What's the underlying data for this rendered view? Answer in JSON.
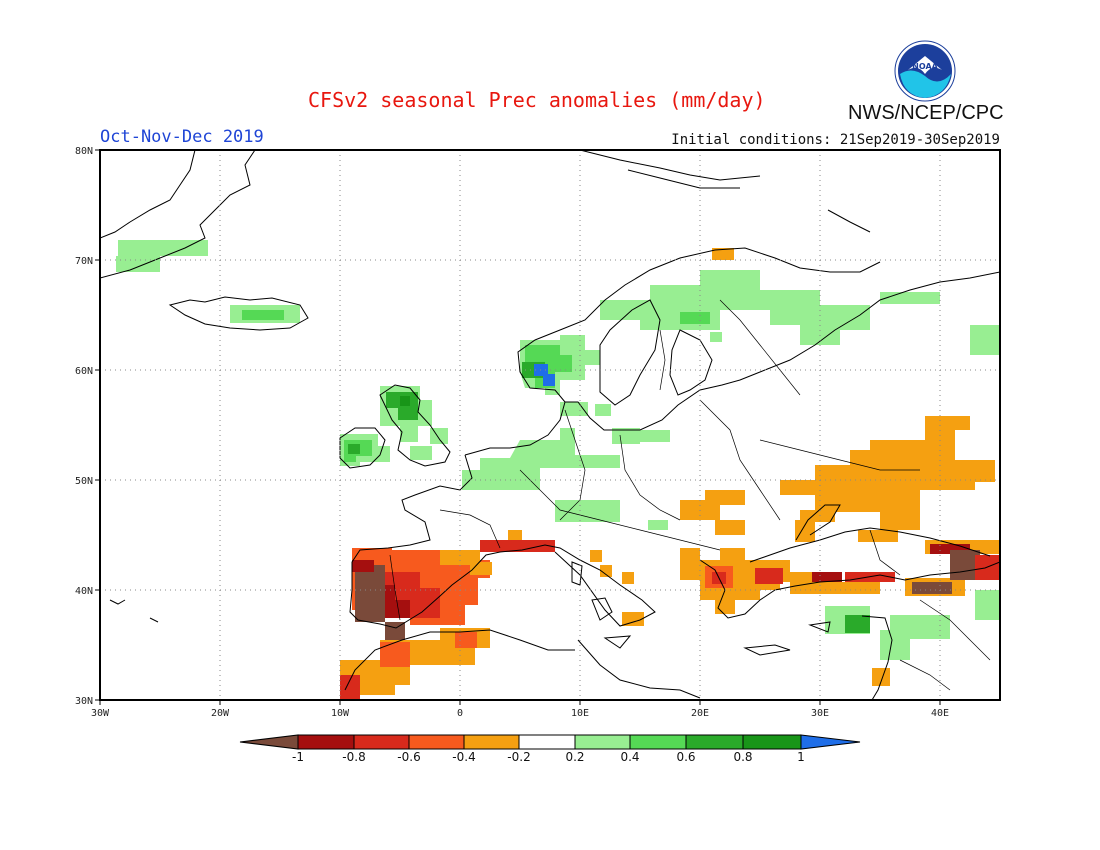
{
  "header": {
    "title": "CFSv2 seasonal Prec anomalies (mm/day)",
    "season": "Oct-Nov-Dec 2019",
    "initial_conditions": "Initial conditions: 21Sep2019-30Sep2019",
    "agency": "NWS/NCEP/CPC",
    "logo_text": "NOAA"
  },
  "axes": {
    "lat_labels": [
      "80N",
      "70N",
      "60N",
      "50N",
      "40N",
      "30N"
    ],
    "lon_labels": [
      "30W",
      "20W",
      "10W",
      "0",
      "10E",
      "20E",
      "30E",
      "40E"
    ]
  },
  "colorbar": {
    "labels": [
      "-1",
      "-0.8",
      "-0.6",
      "-0.4",
      "-0.2",
      "0.2",
      "0.4",
      "0.6",
      "0.8",
      "1"
    ],
    "colors": [
      "#7a4a3a",
      "#a50f0f",
      "#d82a1c",
      "#f75a1e",
      "#f5a011",
      "#ffffff",
      "#98ee92",
      "#55d955",
      "#2aaa2a",
      "#189518",
      "#1f6ee8"
    ]
  },
  "anomaly_regions": [
    {
      "name": "iberia-dry",
      "level": -0.8
    },
    {
      "name": "iberia-core",
      "level": -1.0
    },
    {
      "name": "ukraine-russia-dry",
      "level": -0.4
    },
    {
      "name": "caucasus-dry",
      "level": -1.0
    },
    {
      "name": "scandinavia-wet",
      "level": 0.4
    },
    {
      "name": "norway-coast-wet",
      "level": 1.0
    },
    {
      "name": "ireland-scotland-wet",
      "level": 0.8
    }
  ]
}
